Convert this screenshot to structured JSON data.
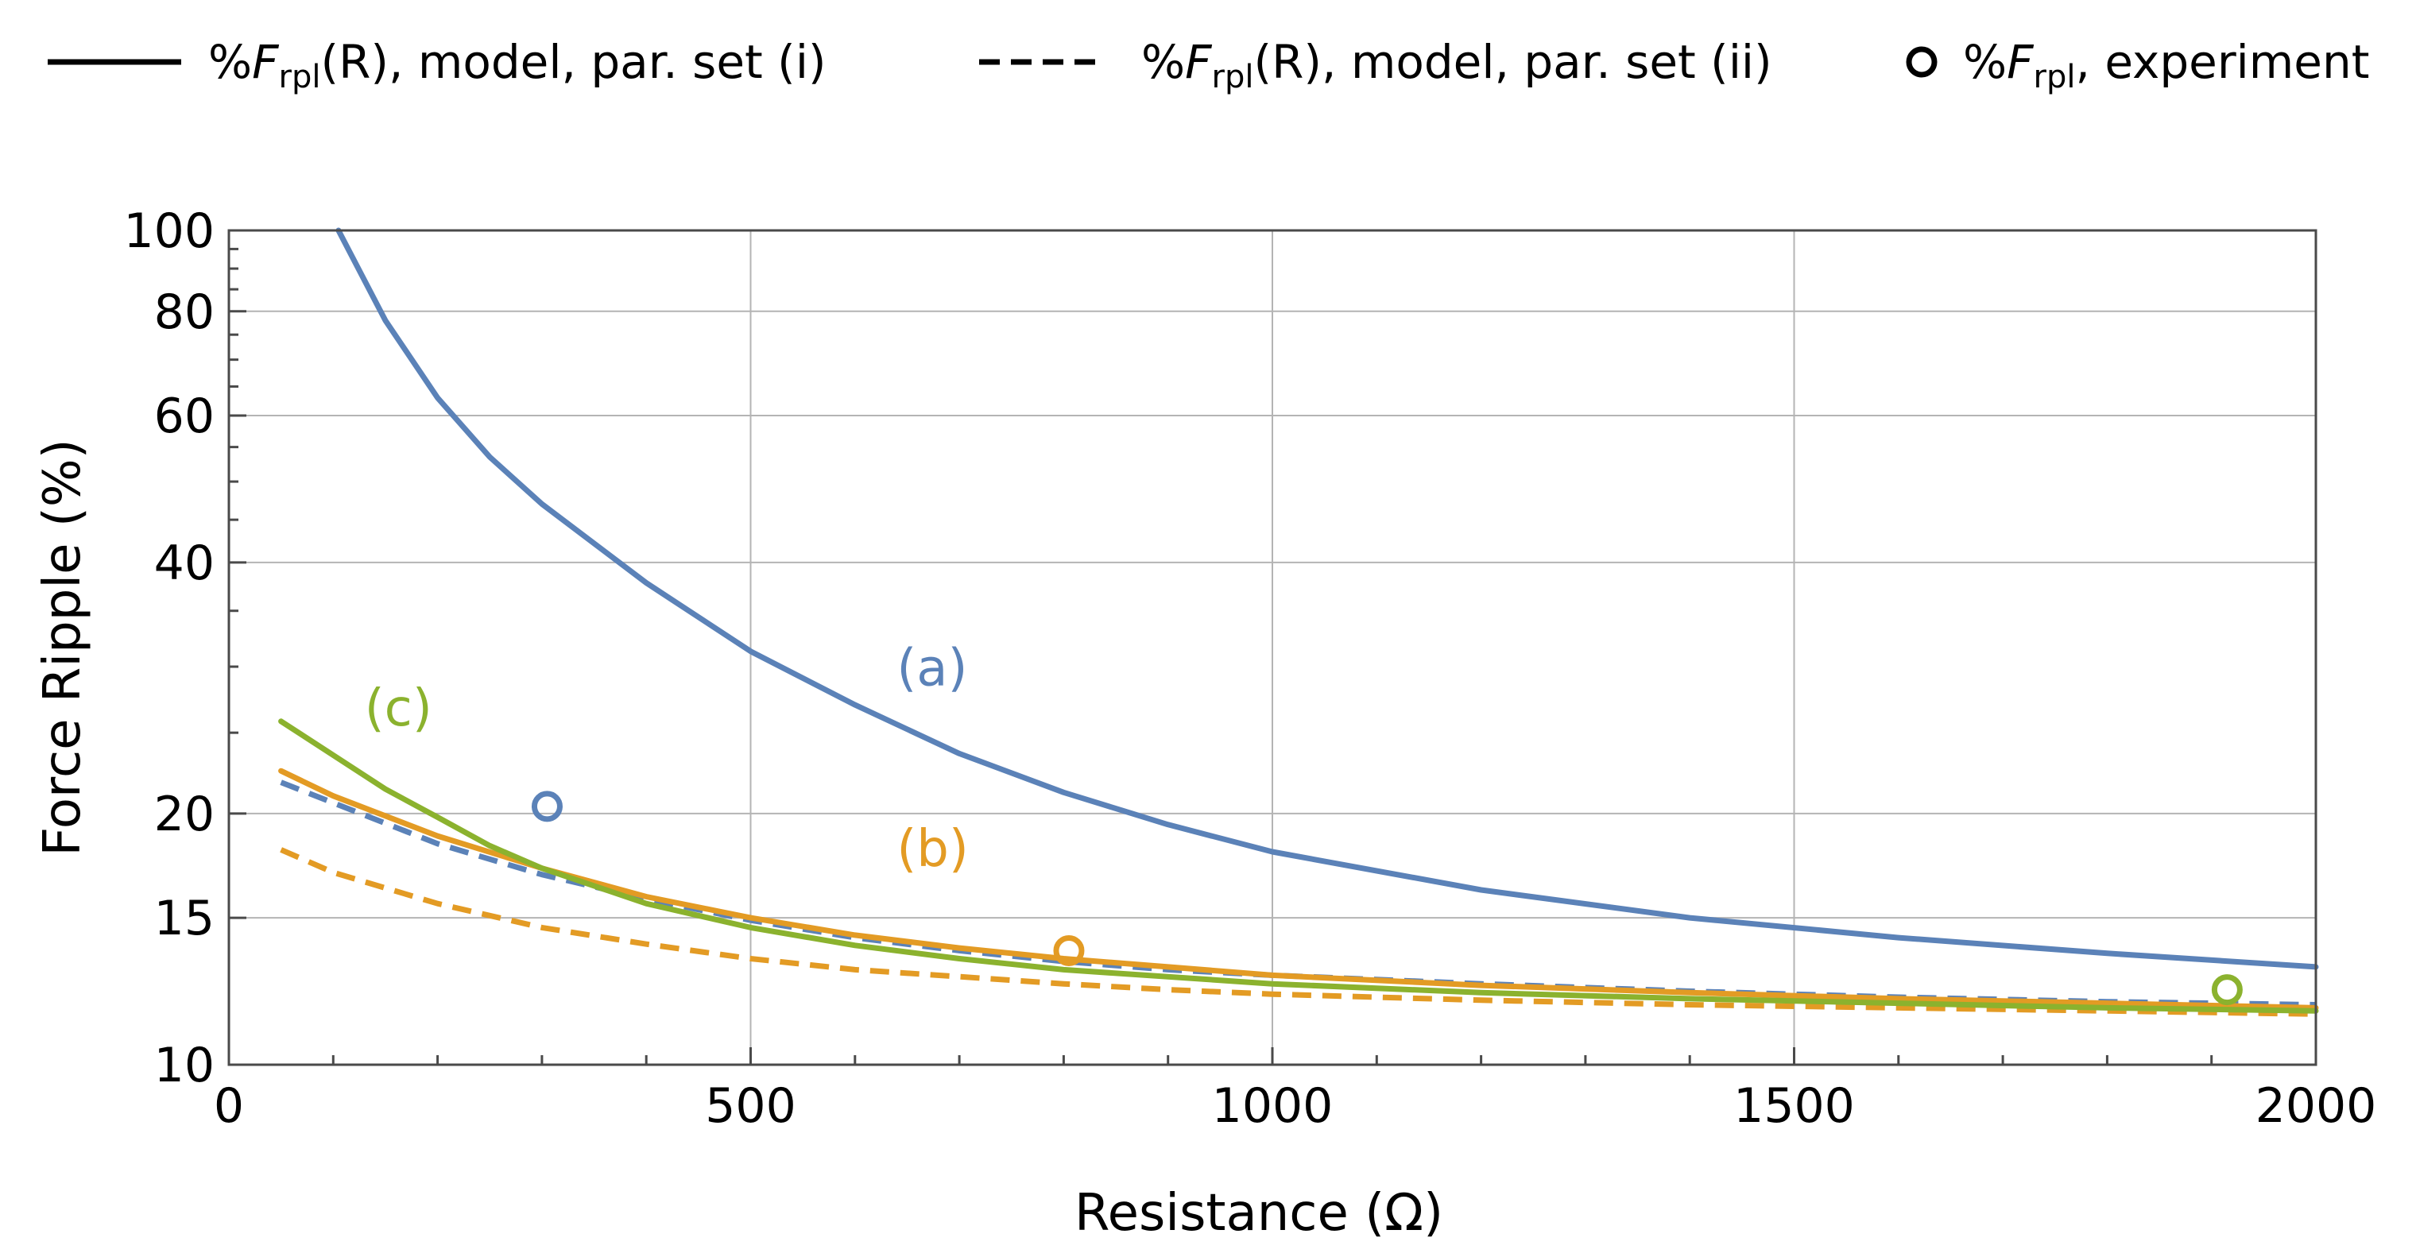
{
  "chart_data": {
    "type": "line",
    "title": "",
    "xlabel": "Resistance (Ω)",
    "ylabel": "Force Ripple (%)",
    "xlim": [
      0,
      2000
    ],
    "ylim": [
      10,
      100
    ],
    "yscale": "log",
    "grid": true,
    "x_ticks": [
      0,
      500,
      1000,
      1500,
      2000
    ],
    "x_tick_labels": [
      "0",
      "500",
      "1000",
      "1500",
      "2000"
    ],
    "y_ticks": [
      10,
      15,
      20,
      40,
      60,
      80,
      100
    ],
    "y_tick_labels": [
      "10",
      "15",
      "20",
      "40",
      "60",
      "80",
      "100"
    ],
    "legend": {
      "position": "top",
      "entries": [
        {
          "style": "solid",
          "prefix": "%",
          "var": "F",
          "sub": "rpl",
          "suffix": "(R), model, par. set (i)"
        },
        {
          "style": "dashed",
          "prefix": "%",
          "var": "F",
          "sub": "rpl",
          "suffix": "(R), model, par. set (ii)"
        },
        {
          "style": "marker",
          "prefix": "%",
          "var": "F",
          "sub": "rpl",
          "suffix": ", experiment"
        }
      ]
    },
    "annotations": [
      {
        "text": "(a)",
        "x": 640,
        "y": 28.5,
        "color": "#5b82b8"
      },
      {
        "text": "(c)",
        "x": 130,
        "y": 25.5,
        "color": "#8bb22e"
      },
      {
        "text": "(b)",
        "x": 640,
        "y": 17.3,
        "color": "#e39b24"
      }
    ],
    "colors": {
      "a": "#5b82b8",
      "b": "#e39b24",
      "c": "#8bb22e"
    },
    "series": [
      {
        "name": "(a) par. set (i)",
        "color": "#5b82b8",
        "style": "solid",
        "x": [
          105,
          150,
          200,
          250,
          300,
          400,
          500,
          600,
          700,
          800,
          900,
          1000,
          1200,
          1400,
          1600,
          1800,
          2000
        ],
        "y": [
          100,
          78,
          63,
          53.5,
          47,
          37.8,
          31.3,
          27,
          23.6,
          21.2,
          19.4,
          18.0,
          16.2,
          15.0,
          14.2,
          13.6,
          13.1
        ]
      },
      {
        "name": "(a) par. set (ii)",
        "color": "#5b82b8",
        "style": "dashed",
        "x": [
          50,
          100,
          200,
          300,
          400,
          500,
          600,
          700,
          800,
          900,
          1000,
          1200,
          1400,
          1600,
          1800,
          2000
        ],
        "y": [
          21.8,
          20.6,
          18.4,
          16.9,
          15.8,
          14.9,
          14.2,
          13.7,
          13.3,
          13.0,
          12.8,
          12.5,
          12.25,
          12.05,
          11.9,
          11.8
        ]
      },
      {
        "name": "(b) par. set (i)",
        "color": "#e39b24",
        "style": "solid",
        "x": [
          50,
          100,
          200,
          300,
          400,
          500,
          600,
          700,
          800,
          900,
          1000,
          1200,
          1400,
          1600,
          1800,
          2000
        ],
        "y": [
          22.5,
          21.0,
          18.8,
          17.2,
          15.9,
          15.0,
          14.3,
          13.8,
          13.4,
          13.1,
          12.8,
          12.45,
          12.2,
          12.0,
          11.85,
          11.7
        ]
      },
      {
        "name": "(b) par. set (ii)",
        "color": "#e39b24",
        "style": "dashed",
        "x": [
          50,
          100,
          200,
          300,
          400,
          500,
          600,
          700,
          800,
          900,
          1000,
          1200,
          1400,
          1600,
          1800,
          2000
        ],
        "y": [
          18.1,
          17.0,
          15.6,
          14.6,
          13.95,
          13.4,
          13.0,
          12.75,
          12.5,
          12.3,
          12.15,
          11.95,
          11.8,
          11.7,
          11.6,
          11.5
        ]
      },
      {
        "name": "(c) par. set (i)",
        "color": "#8bb22e",
        "style": "solid",
        "x": [
          50,
          100,
          150,
          200,
          250,
          300,
          400,
          500,
          600,
          700,
          800,
          1000,
          1200,
          1400,
          1600,
          1800,
          2000
        ],
        "y": [
          25.8,
          23.5,
          21.4,
          19.8,
          18.3,
          17.2,
          15.6,
          14.6,
          13.9,
          13.4,
          13.0,
          12.5,
          12.2,
          12.0,
          11.85,
          11.7,
          11.6
        ]
      }
    ],
    "experiment_points": [
      {
        "label": "(a)",
        "x": 305,
        "y": 20.4,
        "color": "#5b82b8"
      },
      {
        "label": "(b)",
        "x": 805,
        "y": 13.7,
        "color": "#e39b24"
      },
      {
        "label": "(c)",
        "x": 1915,
        "y": 12.3,
        "color": "#8bb22e"
      }
    ]
  }
}
